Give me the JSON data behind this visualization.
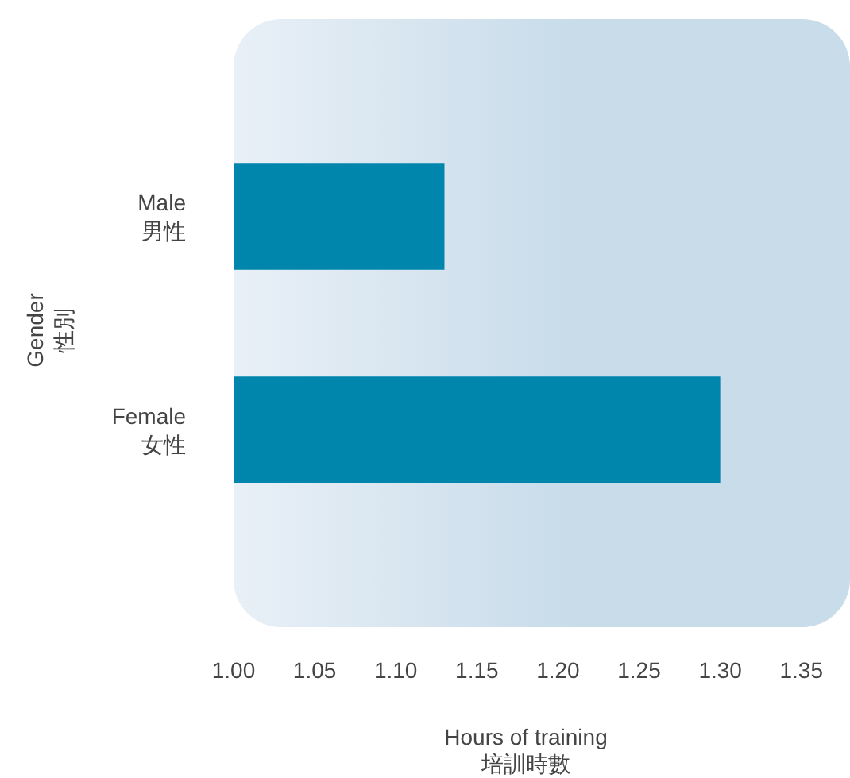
{
  "chart_data": {
    "type": "bar",
    "orientation": "horizontal",
    "categories": [
      "Male\n男性",
      "Female\n女性"
    ],
    "values": [
      1.13,
      1.3
    ],
    "color": "#0085ad",
    "xlabel": "Hours of training\n培訓時數",
    "ylabel": "Gender\n性別",
    "xlim": [
      1.0,
      1.38
    ],
    "xticks": [
      {
        "value": 1.0,
        "label": "1.00"
      },
      1.05,
      {
        "value": 1.1,
        "label": "1.10"
      },
      1.15,
      {
        "value": 1.2,
        "label": "1.20"
      },
      1.25,
      {
        "value": 1.3,
        "label": "1.30"
      },
      1.35
    ],
    "grid": false
  }
}
